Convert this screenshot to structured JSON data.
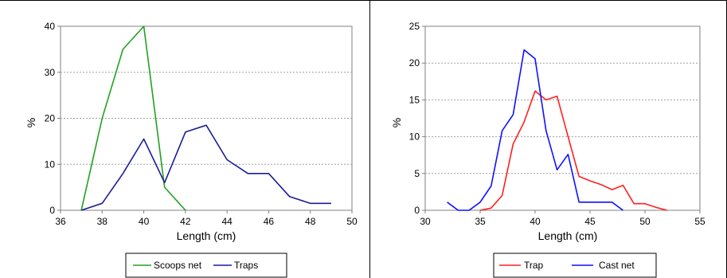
{
  "chart_data": [
    {
      "type": "line",
      "xlabel": "Length  (cm)",
      "ylabel": "%",
      "xlim": [
        36,
        50
      ],
      "ylim": [
        0,
        40
      ],
      "xticks": [
        36,
        38,
        40,
        42,
        44,
        46,
        48,
        50
      ],
      "yticks": [
        0,
        10,
        20,
        30,
        40
      ],
      "grid": "horizontal dashed",
      "legend_position": "bottom",
      "colors": {
        "series_0": "#22A022",
        "series_1": "#1C1C9A"
      },
      "series": [
        {
          "name": "Scoops net",
          "x": [
            37,
            38,
            39,
            40,
            41,
            42
          ],
          "y": [
            0,
            20,
            35,
            40,
            5,
            0
          ]
        },
        {
          "name": "Traps",
          "x": [
            37,
            38,
            39,
            40,
            41,
            42,
            43,
            44,
            45,
            46,
            47,
            48,
            49
          ],
          "y": [
            0,
            1.5,
            8,
            15.5,
            6,
            17,
            18.5,
            11,
            8,
            8,
            3,
            1.5,
            1.5
          ]
        }
      ]
    },
    {
      "type": "line",
      "xlabel": "Length (cm)",
      "ylabel": "%",
      "xlim": [
        30,
        55
      ],
      "ylim": [
        0,
        25
      ],
      "xticks": [
        30,
        35,
        40,
        45,
        50,
        55
      ],
      "yticks": [
        0,
        5,
        10,
        15,
        20,
        25
      ],
      "grid": "horizontal dashed",
      "legend_position": "bottom",
      "colors": {
        "series_0": "#FF2020",
        "series_1": "#1010FF"
      },
      "series": [
        {
          "name": "Trap",
          "x": [
            35,
            36,
            37,
            38,
            39,
            40,
            41,
            42,
            43,
            44,
            45,
            46,
            47,
            48,
            49,
            50,
            51,
            52
          ],
          "y": [
            0,
            0.3,
            2,
            9,
            12,
            16.2,
            15,
            15.5,
            10,
            4.6,
            4,
            3.5,
            2.8,
            3.4,
            0.9,
            0.9,
            0.4,
            0
          ]
        },
        {
          "name": "Cast net",
          "x": [
            32,
            33,
            34,
            35,
            36,
            37,
            38,
            39,
            40,
            41,
            42,
            43,
            44,
            45,
            46,
            47,
            48
          ],
          "y": [
            1.1,
            0,
            0,
            1.1,
            3.3,
            10.8,
            13,
            21.8,
            20.6,
            10.8,
            5.5,
            7.6,
            1.1,
            1.1,
            1.1,
            1.1,
            0
          ]
        }
      ]
    }
  ]
}
